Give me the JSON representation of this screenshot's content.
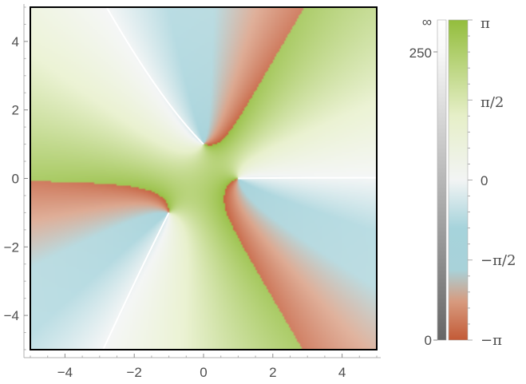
{
  "chart_data": {
    "type": "heatmap",
    "title": "",
    "xlabel": "",
    "ylabel": "",
    "xlim": [
      -5,
      5
    ],
    "ylim": [
      -5,
      5
    ],
    "x_ticks": [
      -4,
      -2,
      0,
      2,
      4
    ],
    "x_tick_labels": [
      "−4",
      "−2",
      "0",
      "2",
      "4"
    ],
    "y_ticks": [
      -4,
      -2,
      0,
      2,
      4
    ],
    "y_tick_labels": [
      "−4",
      "−2",
      "0",
      "2",
      "4"
    ],
    "color_function": "complex argument (hue) with magnitude shading",
    "zeros": [
      {
        "re": 1,
        "im": 0
      },
      {
        "re": 0,
        "im": 1
      },
      {
        "re": -1,
        "im": -1
      }
    ],
    "magnitude_legend": {
      "range": [
        0,
        250
      ],
      "labels": [
        "∞",
        "250",
        "0"
      ],
      "colors": [
        "#666666",
        "#ffffff"
      ]
    },
    "phase_legend": {
      "range": [
        "-π",
        "π"
      ],
      "labels": [
        "π",
        "π/2",
        "0",
        "−π/2",
        "−π"
      ],
      "colors": [
        "#c35a36",
        "#e7d8d0",
        "#a6d3db",
        "#f4f4f4",
        "#93bd3c"
      ]
    }
  }
}
